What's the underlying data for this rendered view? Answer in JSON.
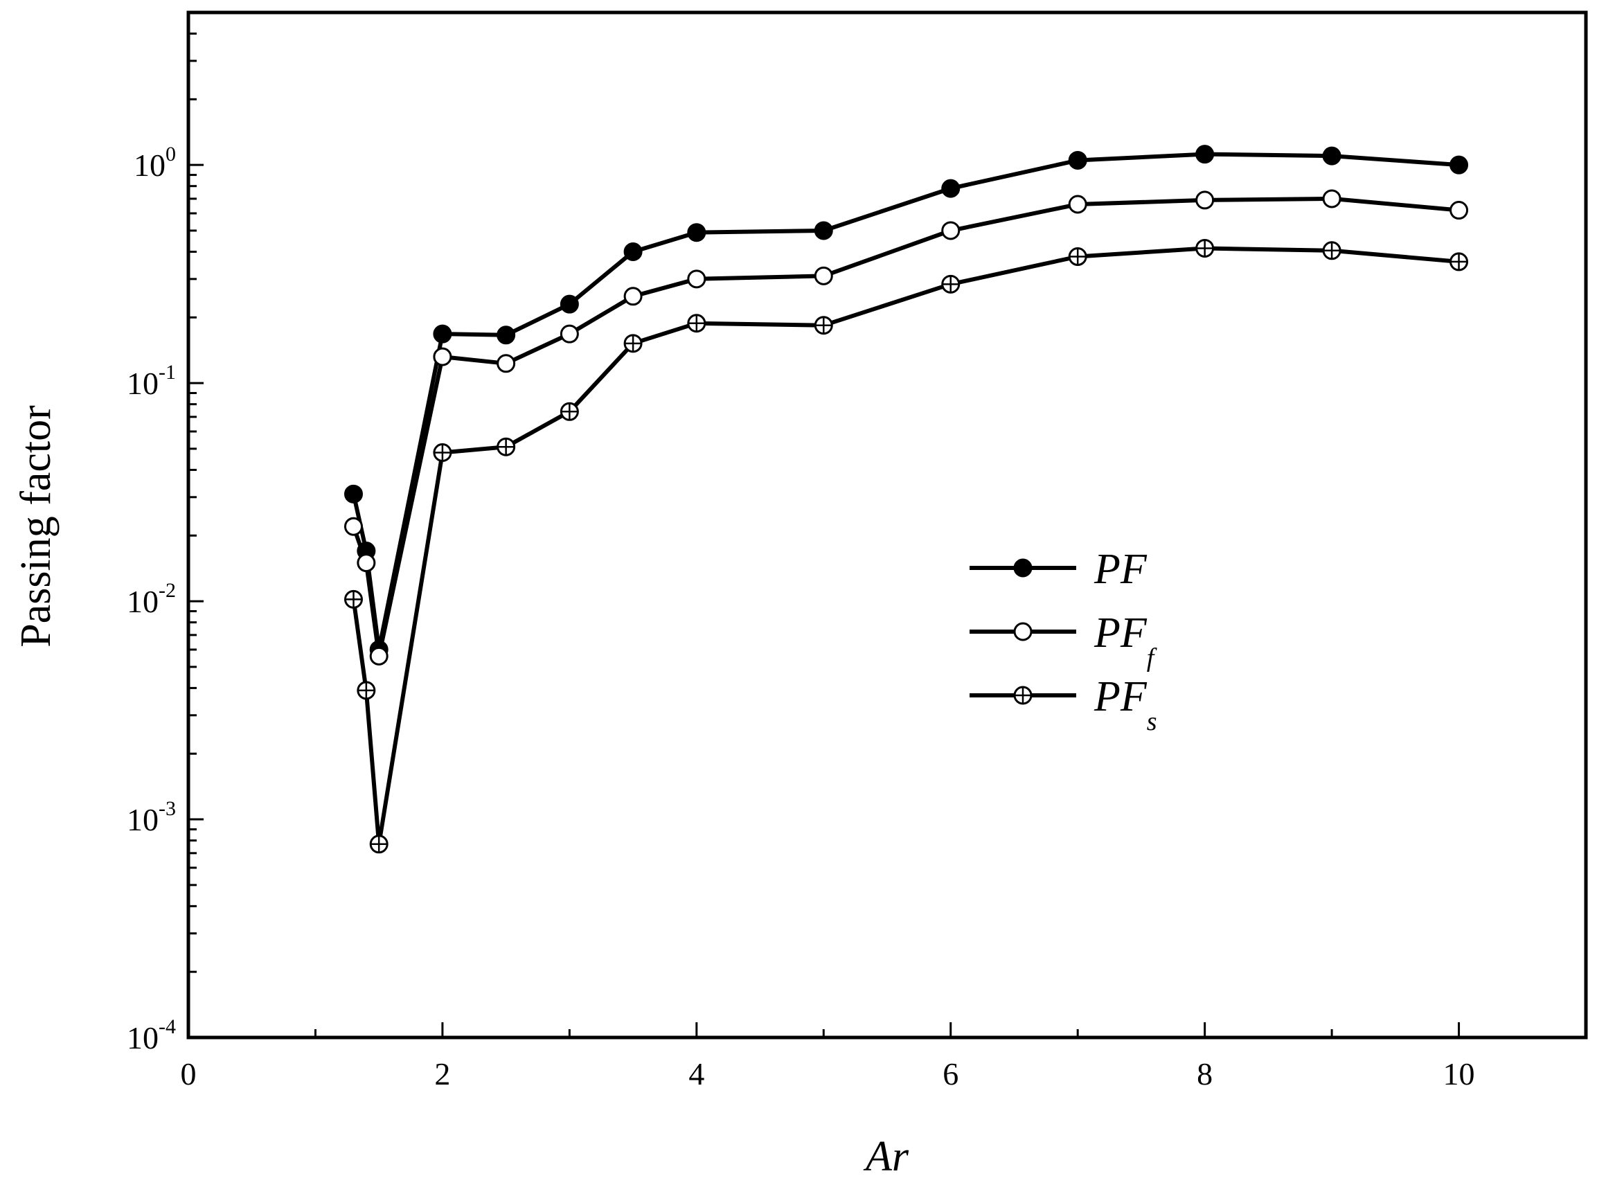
{
  "chart_data": {
    "type": "line",
    "title": "",
    "xlabel": "Ar",
    "ylabel": "Passing factor",
    "x_scale": "linear",
    "y_scale": "log",
    "xlim": [
      0,
      11
    ],
    "ylim": [
      0.0001,
      5
    ],
    "x_ticks": [
      0,
      2,
      4,
      6,
      8,
      10
    ],
    "x_tick_labels": [
      "0",
      "2",
      "4",
      "6",
      "8",
      "10"
    ],
    "y_ticks": [
      0.0001,
      0.001,
      0.01,
      0.1,
      1
    ],
    "y_tick_labels": [
      {
        "base": "10",
        "exp": "-4"
      },
      {
        "base": "10",
        "exp": "-3"
      },
      {
        "base": "10",
        "exp": "-2"
      },
      {
        "base": "10",
        "exp": "-1"
      },
      {
        "base": "10",
        "exp": "0"
      }
    ],
    "grid": false,
    "legend_position": "center-right",
    "x": [
      1.3,
      1.4,
      1.5,
      2,
      2.5,
      3,
      3.5,
      4,
      5,
      6,
      7,
      8,
      9,
      10
    ],
    "series": [
      {
        "id": "pf",
        "legend_main": "PF",
        "legend_sub": "",
        "marker": "filled-circle",
        "color": "#000000",
        "values": [
          0.031,
          0.017,
          0.006,
          0.168,
          0.166,
          0.23,
          0.4,
          0.49,
          0.5,
          0.78,
          1.05,
          1.12,
          1.1,
          1.0
        ]
      },
      {
        "id": "pf_f",
        "legend_main": "PF",
        "legend_sub": "f",
        "marker": "open-circle",
        "color": "#000000",
        "values": [
          0.022,
          0.015,
          0.0056,
          0.132,
          0.123,
          0.168,
          0.25,
          0.3,
          0.31,
          0.5,
          0.66,
          0.69,
          0.7,
          0.62
        ]
      },
      {
        "id": "pf_s",
        "legend_main": "PF",
        "legend_sub": "s",
        "marker": "crossed-circle",
        "color": "#000000",
        "values": [
          0.0102,
          0.0039,
          0.00077,
          0.048,
          0.051,
          0.074,
          0.152,
          0.188,
          0.184,
          0.284,
          0.38,
          0.415,
          0.405,
          0.36
        ]
      }
    ]
  }
}
